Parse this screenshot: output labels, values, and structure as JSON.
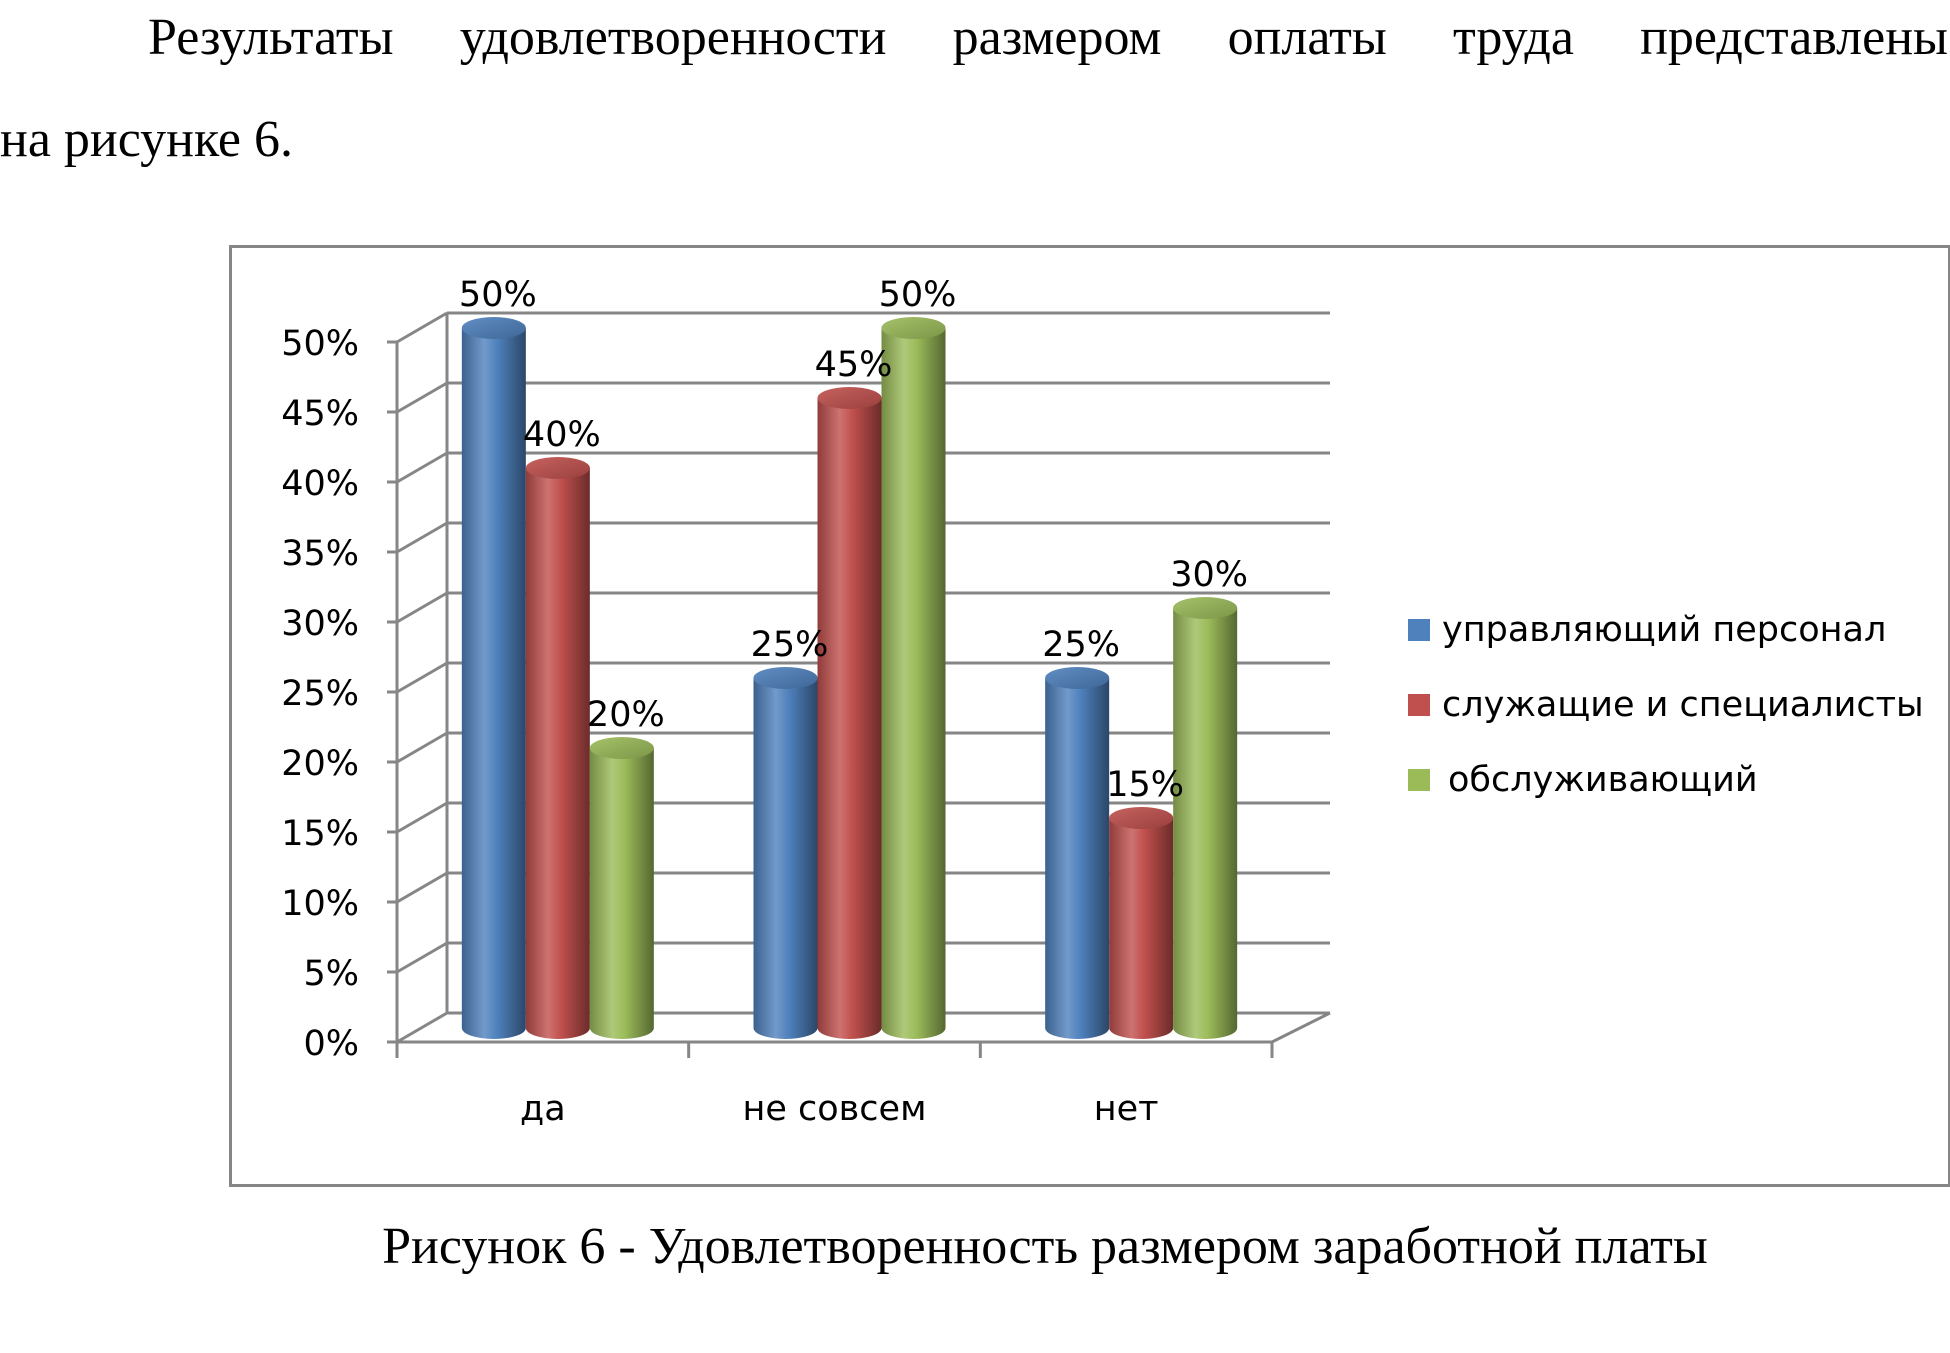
{
  "text": {
    "line1_words": [
      "Результаты",
      "удовлетворенности",
      "размером",
      "оплаты",
      "труда",
      "представлены"
    ],
    "line2": "на рисунке 6.",
    "caption": "Рисунок 6 - Удовлетворенность размером заработной платы"
  },
  "chart_data": {
    "type": "bar",
    "style": "3d-cylinder",
    "categories": [
      "да",
      "не совсем",
      "нет"
    ],
    "series": [
      {
        "name": "управляющий персонал",
        "values": [
          50,
          25,
          25
        ],
        "color": "#4F81BD"
      },
      {
        "name": "служащие и специалисты",
        "values": [
          40,
          45,
          15
        ],
        "color": "#C0504D"
      },
      {
        "name": "обслуживающий",
        "values": [
          20,
          50,
          30
        ],
        "color": "#9BBB59"
      }
    ],
    "data_labels": [
      [
        "50%",
        "25%",
        "25%"
      ],
      [
        "40%",
        "45%",
        "15%"
      ],
      [
        "20%",
        "50%",
        "30%"
      ]
    ],
    "y_ticks": [
      "0%",
      "5%",
      "10%",
      "15%",
      "20%",
      "25%",
      "30%",
      "35%",
      "40%",
      "45%",
      "50%"
    ],
    "ylim": [
      0,
      50
    ],
    "grid": true,
    "legend": "right"
  }
}
